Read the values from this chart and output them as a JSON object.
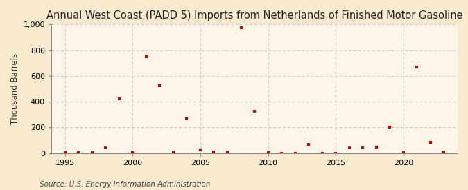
{
  "title": "Annual West Coast (PADD 5) Imports from Netherlands of Finished Motor Gasoline",
  "ylabel": "Thousand Barrels",
  "source": "Source: U.S. Energy Information Administration",
  "outer_bg": "#faebd0",
  "inner_bg": "#fdf6e8",
  "marker_color": "#cc0000",
  "years": [
    1995,
    1996,
    1997,
    1998,
    1999,
    2000,
    2001,
    2002,
    2003,
    2004,
    2005,
    2006,
    2007,
    2008,
    2009,
    2010,
    2011,
    2012,
    2013,
    2014,
    2015,
    2016,
    2017,
    2018,
    2019,
    2020,
    2021,
    2022,
    2023
  ],
  "values": [
    2,
    2,
    2,
    40,
    420,
    2,
    750,
    525,
    2,
    265,
    25,
    10,
    10,
    975,
    325,
    2,
    0,
    0,
    70,
    0,
    0,
    40,
    40,
    45,
    205,
    2,
    670,
    85,
    10
  ],
  "ylim": [
    0,
    1000
  ],
  "xlim": [
    1994,
    2024
  ],
  "yticks": [
    0,
    200,
    400,
    600,
    800,
    1000
  ],
  "xticks": [
    1995,
    2000,
    2005,
    2010,
    2015,
    2020
  ],
  "grid_color": "#c8c8c8",
  "spine_color": "#888888",
  "title_fontsize": 10.5,
  "label_fontsize": 8.5,
  "tick_fontsize": 8,
  "source_fontsize": 7.5
}
